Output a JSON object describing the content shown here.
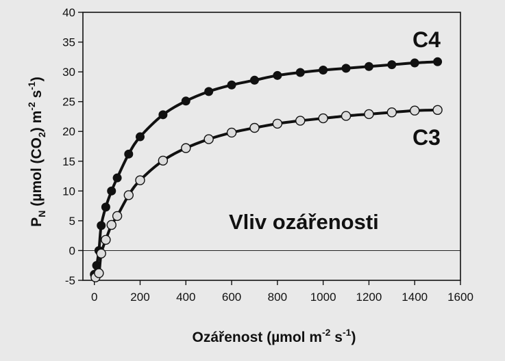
{
  "chart_data": {
    "type": "line",
    "xlabel": "Ozářenost (μmol m⁻² s⁻¹)",
    "ylabel": "P_N (μmol (CO₂) m⁻² s⁻¹)",
    "ylabel_parts": {
      "p": "P",
      "n": "N",
      "mid": " (µmol (CO",
      "two": "2",
      "after": ") m",
      "m2": "-2",
      "s": " s",
      "s1": "-1",
      "close": ")"
    },
    "xlabel_parts": {
      "pre": "Ozářenost (µmol m",
      "m2": "-2",
      "s": " s",
      "s1": "-1",
      "close": ")"
    },
    "xlim": [
      -50,
      1600
    ],
    "ylim": [
      -5,
      40
    ],
    "x_ticks": [
      0,
      200,
      400,
      600,
      800,
      1000,
      1200,
      1400,
      1600
    ],
    "y_ticks": [
      -5,
      0,
      5,
      10,
      15,
      20,
      25,
      30,
      35,
      40
    ],
    "x_tick_labels": [
      "0",
      "200",
      "400",
      "600",
      "800",
      "1000",
      "1200",
      "1400",
      "1600"
    ],
    "y_tick_labels": [
      "-5",
      "0",
      "5",
      "10",
      "15",
      "20",
      "25",
      "30",
      "35",
      "40"
    ],
    "annotation": "Vliv  ozářenosti",
    "series": [
      {
        "name": "C4",
        "marker": "filled-circle",
        "color": "#111111",
        "x": [
          0,
          10,
          20,
          30,
          50,
          75,
          100,
          150,
          200,
          300,
          400,
          500,
          600,
          700,
          800,
          900,
          1000,
          1100,
          1200,
          1300,
          1400,
          1500
        ],
        "y": [
          -4,
          -2.5,
          0,
          4.2,
          7.3,
          10,
          12.2,
          16.2,
          19.1,
          22.8,
          25.1,
          26.7,
          27.8,
          28.6,
          29.4,
          29.9,
          30.3,
          30.6,
          30.9,
          31.2,
          31.5,
          31.7
        ]
      },
      {
        "name": "C3",
        "marker": "open-circle",
        "color": "#111111",
        "x": [
          5,
          20,
          30,
          50,
          75,
          100,
          150,
          200,
          300,
          400,
          500,
          600,
          700,
          800,
          900,
          1000,
          1100,
          1200,
          1300,
          1400,
          1500
        ],
        "y": [
          -4.5,
          -3.8,
          -0.5,
          1.8,
          4.3,
          5.8,
          9.3,
          11.8,
          15.1,
          17.2,
          18.7,
          19.8,
          20.6,
          21.3,
          21.8,
          22.2,
          22.6,
          22.9,
          23.2,
          23.5,
          23.6
        ]
      }
    ]
  }
}
